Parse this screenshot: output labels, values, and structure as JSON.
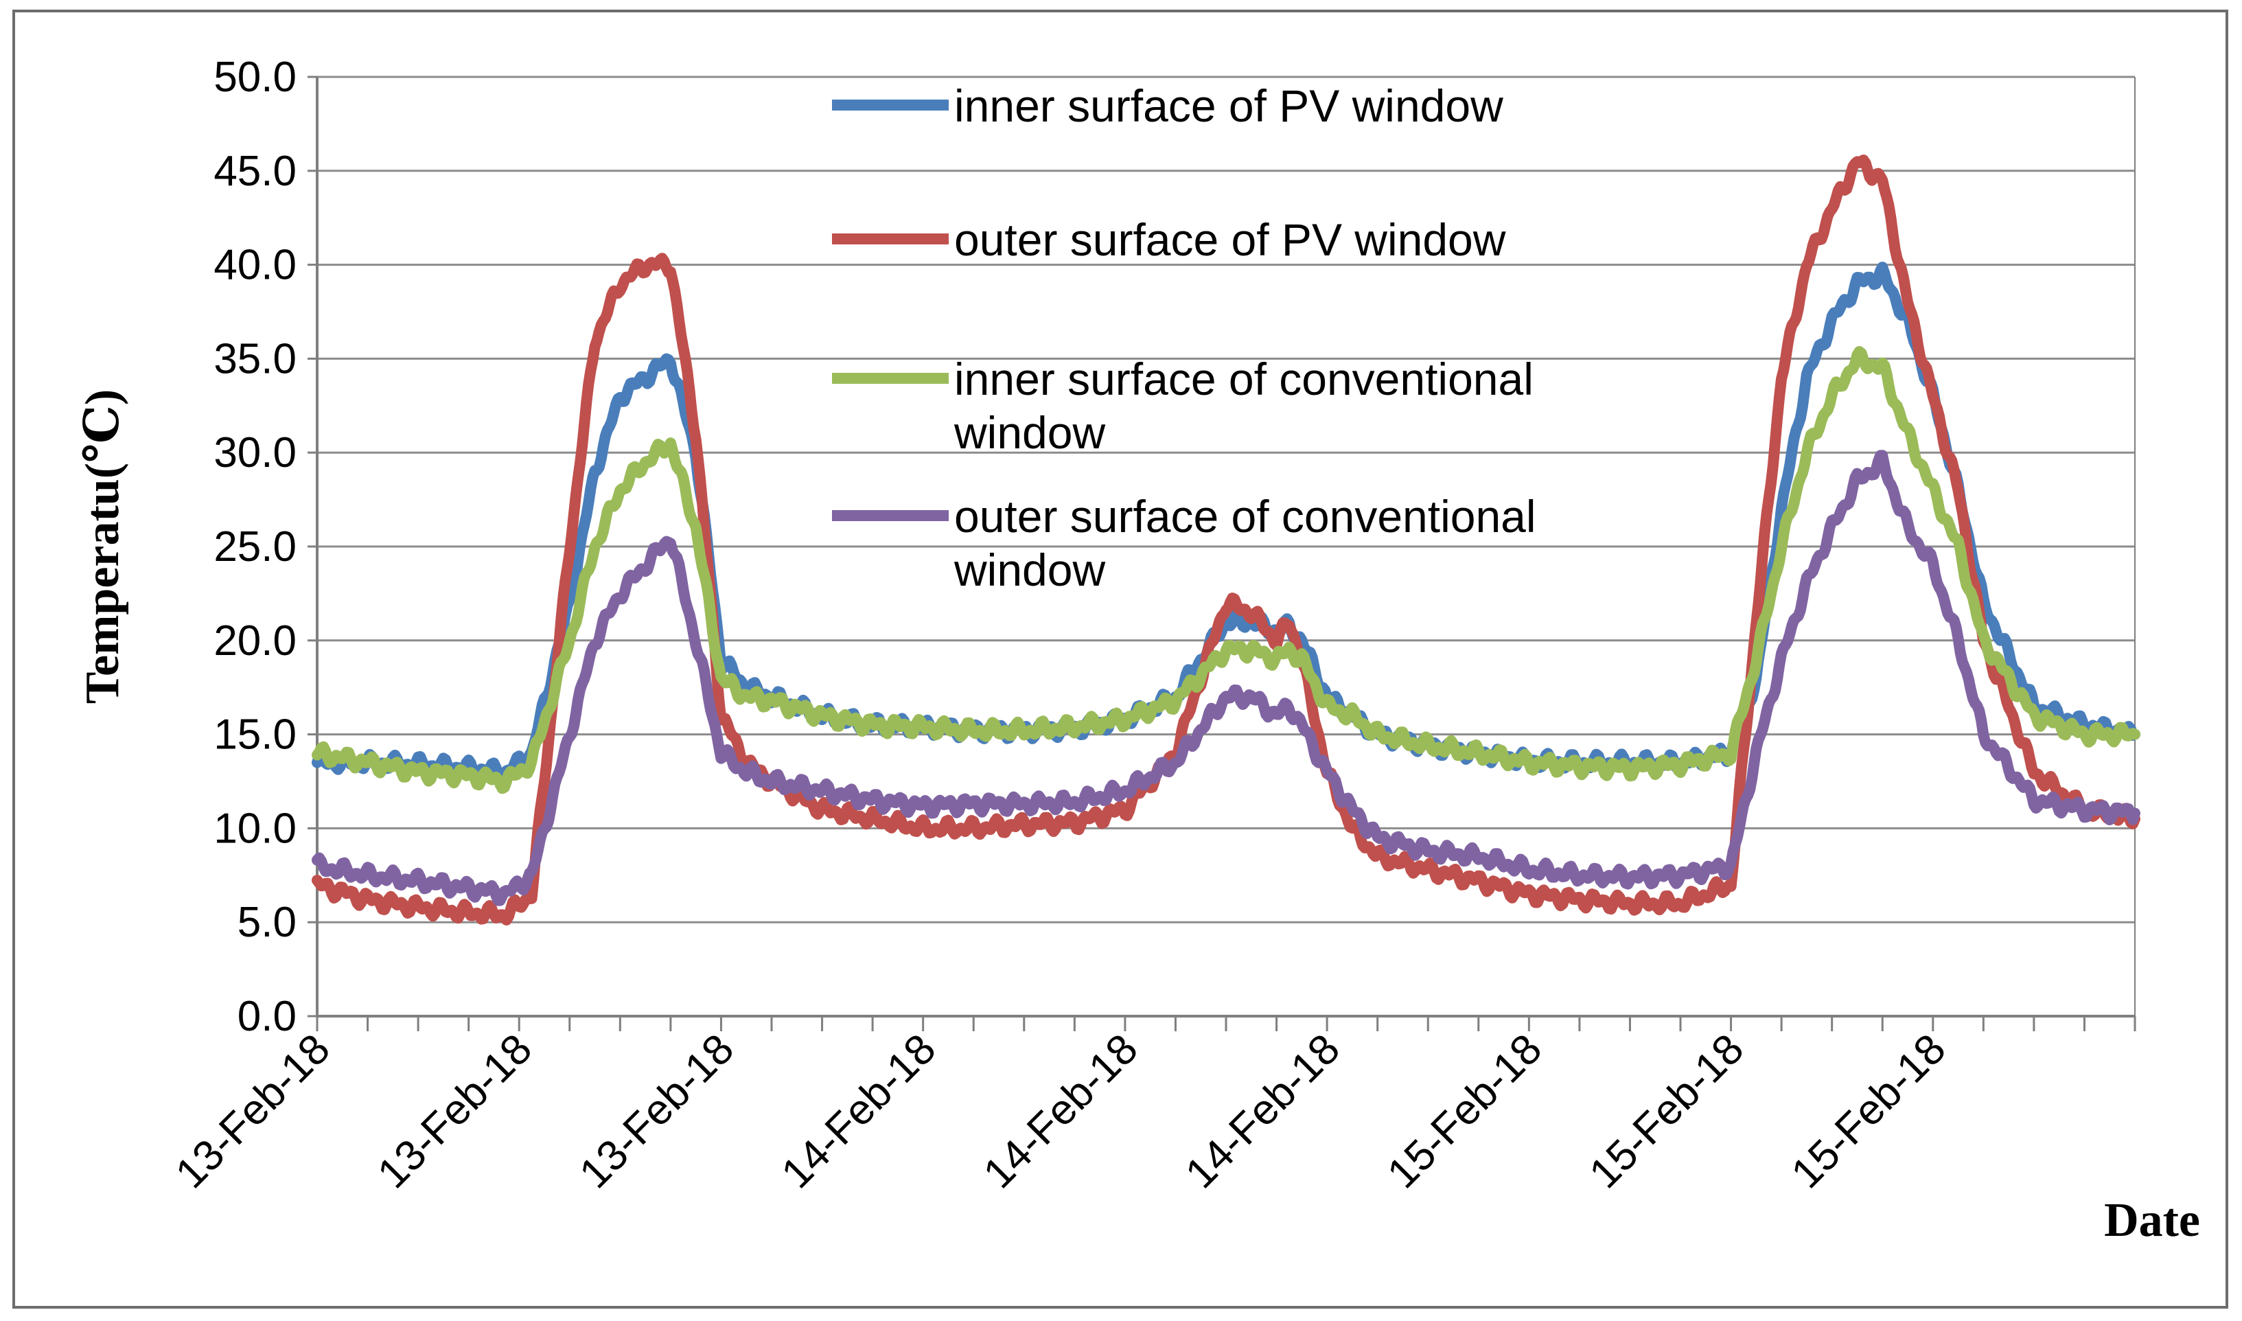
{
  "chart_data": {
    "type": "line",
    "title": "",
    "xlabel": "Date",
    "ylabel": "Temperatu(℃)",
    "ylim": [
      0,
      50
    ],
    "yticks": [
      "0.0",
      "5.0",
      "10.0",
      "15.0",
      "20.0",
      "25.0",
      "30.0",
      "35.0",
      "40.0",
      "45.0",
      "50.0"
    ],
    "xlim": [
      0,
      72
    ],
    "x_unit": "hours from start of 13-Feb-18 (approx.)",
    "xtick_labels": [
      {
        "x": 0,
        "label": "13-Feb-18"
      },
      {
        "x": 8,
        "label": "13-Feb-18"
      },
      {
        "x": 16,
        "label": "13-Feb-18"
      },
      {
        "x": 24,
        "label": "14-Feb-18"
      },
      {
        "x": 32,
        "label": "14-Feb-18"
      },
      {
        "x": 40,
        "label": "14-Feb-18"
      },
      {
        "x": 48,
        "label": "15-Feb-18"
      },
      {
        "x": 56,
        "label": "15-Feb-18"
      },
      {
        "x": 64,
        "label": "15-Feb-18"
      }
    ],
    "minor_tick_step": 2,
    "grid": true,
    "legend_position": "top-center",
    "series": [
      {
        "name": "inner surface of PV window",
        "color": "#4a7ebb",
        "x": [
          0,
          2,
          4,
          6,
          7.5,
          8.5,
          10,
          11,
          12,
          13,
          14,
          15,
          16,
          17,
          18,
          20,
          22,
          24,
          26,
          28,
          30,
          32,
          34,
          36,
          37,
          38,
          38.5,
          39,
          40,
          41,
          42,
          44,
          46,
          48,
          50,
          52,
          54,
          56,
          57,
          58,
          59,
          60,
          61,
          62,
          63,
          64,
          65,
          66,
          68,
          70,
          72
        ],
        "y": [
          13.5,
          13.5,
          13.4,
          13.2,
          13,
          14,
          22,
          29,
          33,
          34,
          35,
          30,
          19,
          17.5,
          17,
          16,
          15.5,
          15.4,
          15.2,
          15.2,
          15.3,
          15.8,
          17,
          21,
          21,
          20.5,
          20.8,
          20,
          17,
          16,
          15,
          14.4,
          14,
          13.6,
          13.5,
          13.5,
          13.5,
          14,
          18,
          27,
          34,
          37,
          39,
          39.5,
          37,
          33,
          28,
          22,
          16.5,
          15.5,
          15
        ]
      },
      {
        "name": "outer surface of PV window",
        "color": "#c0504d",
        "x": [
          0,
          2,
          4,
          6,
          7.5,
          8.5,
          10,
          11,
          12,
          13,
          14,
          15,
          16,
          17,
          18,
          20,
          22,
          24,
          26,
          28,
          30,
          32,
          34,
          36,
          37,
          38,
          38.5,
          39,
          40,
          41,
          42,
          44,
          46,
          48,
          50,
          52,
          54,
          56,
          57,
          58,
          59,
          60,
          61,
          62,
          63,
          64,
          65,
          66,
          68,
          70,
          72
        ],
        "y": [
          7,
          6.2,
          5.8,
          5.5,
          5.4,
          6.5,
          25,
          36,
          39,
          40,
          40,
          31,
          16,
          13.5,
          12.5,
          11,
          10.5,
          10,
          10,
          10.2,
          10.3,
          11,
          14,
          22,
          21.5,
          20,
          21,
          19,
          13,
          10,
          8.5,
          7.8,
          7.2,
          6.5,
          6.2,
          6,
          6,
          7,
          21,
          34,
          40,
          43,
          45.5,
          44.5,
          38,
          33,
          28,
          20,
          13,
          11,
          10.5
        ]
      },
      {
        "name": "inner surface of conventional window",
        "color": "#9bbb59",
        "x": [
          0,
          2,
          4,
          6,
          7.5,
          8.5,
          10,
          11,
          12,
          13,
          14,
          15,
          16,
          17,
          18,
          20,
          22,
          24,
          26,
          28,
          30,
          32,
          34,
          36,
          37,
          38,
          38.5,
          39,
          40,
          41,
          42,
          44,
          46,
          48,
          50,
          52,
          54,
          56,
          57,
          58,
          59,
          60,
          61,
          62,
          63,
          64,
          65,
          66,
          68,
          70,
          72
        ],
        "y": [
          14,
          13.5,
          13,
          12.8,
          12.5,
          13.5,
          20,
          25,
          28,
          29.5,
          30.5,
          26,
          18,
          17,
          16.8,
          16,
          15.5,
          15.4,
          15.2,
          15.2,
          15.4,
          15.8,
          16.8,
          19.5,
          19.5,
          19,
          19.5,
          19,
          16.5,
          16,
          15,
          14.4,
          14,
          13.5,
          13.3,
          13.2,
          13.4,
          14,
          19,
          25,
          30,
          33,
          35,
          34.5,
          31,
          28,
          25,
          20,
          16,
          15,
          15
        ]
      },
      {
        "name": "outer surface of conventional window",
        "color": "#8064a2",
        "x": [
          0,
          2,
          4,
          6,
          7.5,
          8.5,
          10,
          11,
          12,
          13,
          14,
          15,
          16,
          17,
          18,
          20,
          22,
          24,
          26,
          28,
          30,
          32,
          34,
          36,
          37,
          38,
          38.5,
          39,
          40,
          41,
          42,
          44,
          46,
          48,
          50,
          52,
          54,
          56,
          57,
          58,
          59,
          60,
          61,
          62,
          63,
          64,
          65,
          66,
          68,
          70,
          72
        ],
        "y": [
          8,
          7.5,
          7.2,
          6.8,
          6.5,
          7.5,
          15,
          20,
          22.5,
          24,
          25.5,
          20,
          14,
          13,
          12.5,
          12,
          11.5,
          11.2,
          11.3,
          11.3,
          11.4,
          12,
          13.5,
          17,
          17,
          16,
          16.5,
          15.5,
          13,
          11,
          9.5,
          8.8,
          8.5,
          7.8,
          7.5,
          7.4,
          7.5,
          8,
          14,
          19,
          23,
          26,
          28.5,
          29.5,
          26,
          24,
          20,
          15,
          11.5,
          11,
          10.8
        ]
      }
    ],
    "legend": [
      {
        "line1": "inner surface of PV window",
        "line2": ""
      },
      {
        "line1": "outer surface of PV window",
        "line2": ""
      },
      {
        "line1": "inner surface of conventional",
        "line2": "window"
      },
      {
        "line1": "outer surface of conventional",
        "line2": "window"
      }
    ]
  }
}
